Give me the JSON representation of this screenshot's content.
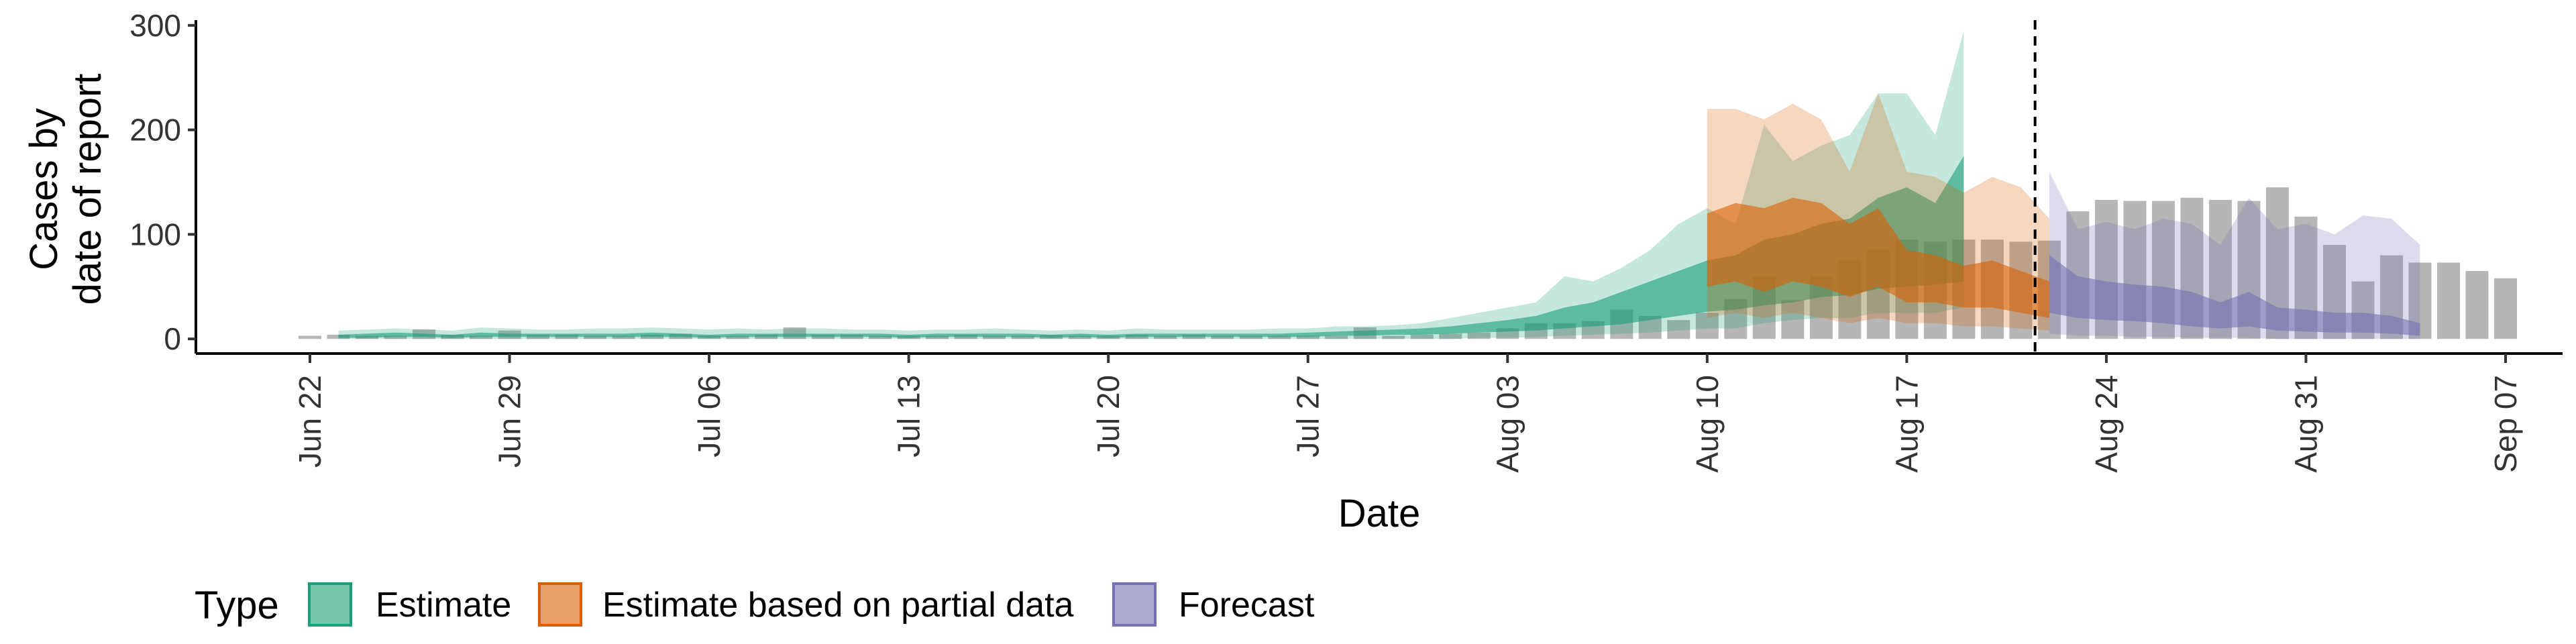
{
  "chart_data": {
    "type": "area",
    "xlabel": "Date",
    "ylabel": [
      "Cases by",
      "date of report"
    ],
    "ylim": [
      -14,
      305
    ],
    "xlim": [
      "2020-06-18",
      "2020-09-09"
    ],
    "yticks": [
      0,
      100,
      200,
      300
    ],
    "xticks": [
      {
        "date": "2020-06-22",
        "label": "Jun 22"
      },
      {
        "date": "2020-06-29",
        "label": "Jun 29"
      },
      {
        "date": "2020-07-06",
        "label": "Jul 06"
      },
      {
        "date": "2020-07-13",
        "label": "Jul 13"
      },
      {
        "date": "2020-07-20",
        "label": "Jul 20"
      },
      {
        "date": "2020-07-27",
        "label": "Jul 27"
      },
      {
        "date": "2020-08-03",
        "label": "Aug 03"
      },
      {
        "date": "2020-08-10",
        "label": "Aug 10"
      },
      {
        "date": "2020-08-17",
        "label": "Aug 17"
      },
      {
        "date": "2020-08-24",
        "label": "Aug 24"
      },
      {
        "date": "2020-08-31",
        "label": "Aug 31"
      },
      {
        "date": "2020-09-07",
        "label": "Sep 07"
      }
    ],
    "vline_date": "2020-08-21",
    "grid": false,
    "legend": {
      "title": "Type",
      "position": "bottom",
      "entries": [
        {
          "label": "Estimate",
          "color": "#1b9e77"
        },
        {
          "label": "Estimate based on partial data",
          "color": "#d95f02"
        },
        {
          "label": "Forecast",
          "color": "#7570b3"
        }
      ]
    },
    "bar_color": "#9e9e9e",
    "bars": {
      "start": "2020-06-22",
      "values": [
        3,
        4,
        3,
        3,
        9,
        4,
        3,
        8,
        4,
        4,
        3,
        3,
        4,
        5,
        3,
        3,
        4,
        11,
        4,
        4,
        3,
        3,
        3,
        4,
        3,
        3,
        4,
        3,
        3,
        4,
        3,
        4,
        3,
        3,
        3,
        3,
        3,
        11,
        3,
        4,
        5,
        6,
        10,
        15,
        15,
        17,
        28,
        22,
        18,
        25,
        38,
        60,
        37,
        60,
        75,
        85,
        95,
        93,
        95,
        95,
        93,
        94,
        122,
        133,
        132,
        132,
        135,
        133,
        132,
        145,
        117,
        90,
        55,
        80,
        73,
        73,
        65,
        58
      ]
    },
    "series": [
      {
        "name": "Estimate",
        "color": "#1b9e77",
        "start": "2020-06-23",
        "outer_upper": [
          8,
          9,
          10,
          9,
          8,
          11,
          10,
          9,
          9,
          10,
          10,
          11,
          10,
          9,
          10,
          9,
          10,
          10,
          9,
          9,
          8,
          9,
          9,
          10,
          9,
          8,
          9,
          8,
          10,
          9,
          9,
          9,
          9,
          10,
          10,
          12,
          12,
          13,
          15,
          20,
          25,
          30,
          35,
          60,
          55,
          68,
          85,
          110,
          125,
          110,
          205,
          170,
          185,
          195,
          235,
          235,
          195,
          295
        ],
        "inner_upper": [
          4,
          5,
          6,
          5,
          4,
          6,
          5,
          5,
          5,
          5,
          5,
          6,
          5,
          4,
          5,
          5,
          5,
          5,
          5,
          5,
          4,
          5,
          5,
          5,
          5,
          4,
          5,
          4,
          5,
          5,
          5,
          5,
          5,
          5,
          6,
          7,
          8,
          9,
          10,
          12,
          15,
          18,
          22,
          30,
          35,
          45,
          55,
          65,
          75,
          80,
          95,
          100,
          110,
          115,
          135,
          145,
          130,
          175
        ],
        "inner_lower": [
          1,
          1,
          2,
          2,
          1,
          2,
          2,
          2,
          2,
          2,
          2,
          2,
          2,
          1,
          2,
          2,
          2,
          2,
          2,
          2,
          1,
          2,
          2,
          2,
          2,
          1,
          2,
          1,
          2,
          2,
          2,
          2,
          2,
          2,
          2,
          3,
          3,
          4,
          4,
          5,
          6,
          7,
          8,
          10,
          12,
          14,
          18,
          22,
          26,
          28,
          32,
          35,
          40,
          42,
          48,
          50,
          52,
          55
        ],
        "outer_lower": [
          0,
          0,
          0,
          0,
          0,
          0,
          0,
          0,
          0,
          0,
          0,
          0,
          0,
          0,
          0,
          0,
          0,
          0,
          0,
          0,
          0,
          0,
          0,
          0,
          0,
          0,
          0,
          0,
          0,
          0,
          0,
          0,
          0,
          0,
          0,
          0,
          0,
          0,
          0,
          0,
          1,
          1,
          2,
          3,
          4,
          5,
          6,
          8,
          10,
          10,
          15,
          18,
          20,
          20,
          25,
          25,
          25,
          30
        ]
      },
      {
        "name": "Estimate based on partial data",
        "color": "#d95f02",
        "start": "2020-08-10",
        "outer_upper": [
          220,
          220,
          210,
          225,
          210,
          160,
          235,
          160,
          155,
          140,
          155,
          145,
          115
        ],
        "inner_upper": [
          120,
          130,
          125,
          135,
          130,
          110,
          125,
          85,
          80,
          70,
          75,
          65,
          55
        ],
        "inner_lower": [
          50,
          55,
          45,
          55,
          50,
          40,
          50,
          35,
          35,
          30,
          30,
          25,
          20
        ],
        "outer_lower": [
          20,
          25,
          20,
          25,
          20,
          15,
          20,
          15,
          15,
          12,
          12,
          10,
          8
        ]
      },
      {
        "name": "Forecast",
        "color": "#7570b3",
        "start": "2020-08-22",
        "outer_upper": [
          160,
          105,
          112,
          105,
          115,
          110,
          90,
          135,
          105,
          110,
          100,
          118,
          115,
          90
        ],
        "inner_upper": [
          80,
          60,
          55,
          52,
          50,
          45,
          35,
          45,
          30,
          28,
          25,
          25,
          22,
          15
        ],
        "inner_lower": [
          25,
          20,
          18,
          17,
          15,
          12,
          10,
          12,
          8,
          7,
          6,
          6,
          5,
          3
        ],
        "outer_lower": [
          5,
          3,
          3,
          2,
          2,
          1,
          1,
          1,
          0,
          0,
          0,
          0,
          0,
          0
        ]
      }
    ]
  }
}
